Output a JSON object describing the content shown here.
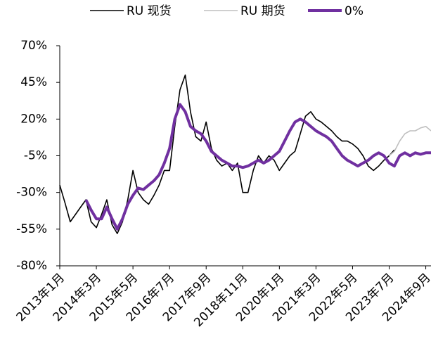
{
  "chart_data": {
    "type": "line",
    "categories": [
      "2013年1月",
      null,
      null,
      null,
      null,
      null,
      null,
      "2014年3月",
      null,
      null,
      null,
      null,
      null,
      null,
      "2015年5月",
      null,
      null,
      null,
      null,
      null,
      null,
      "2016年7月",
      null,
      null,
      null,
      null,
      null,
      null,
      "2017年9月",
      null,
      null,
      null,
      null,
      null,
      null,
      "2018年11月",
      null,
      null,
      null,
      null,
      null,
      null,
      "2020年1月",
      null,
      null,
      null,
      null,
      null,
      null,
      "2021年3月",
      null,
      null,
      null,
      null,
      null,
      null,
      "2022年5月",
      null,
      null,
      null,
      null,
      null,
      null,
      "2023年7月",
      null,
      null,
      null,
      null,
      null,
      null,
      "2024年9月",
      null
    ],
    "series": [
      {
        "name": "RU 现货",
        "color": "#000000",
        "values": [
          -25,
          -37,
          -50,
          -45,
          -40,
          -35,
          -50,
          -54,
          -45,
          -35,
          -52,
          -58,
          -50,
          -35,
          -15,
          -30,
          -35,
          -38,
          -32,
          -25,
          -15,
          -15,
          15,
          40,
          50,
          25,
          8,
          5,
          18,
          0,
          -8,
          -12,
          -10,
          -15,
          -10,
          -30,
          -30,
          -15,
          -5,
          -10,
          -5,
          -8,
          -15,
          -10,
          -5,
          -2,
          10,
          22,
          25,
          20,
          18,
          15,
          12,
          8,
          5,
          5,
          3,
          0,
          -5,
          -12,
          -15,
          -12,
          -8,
          -5,
          -1,
          null,
          null,
          null,
          null,
          null,
          null,
          null
        ]
      },
      {
        "name": "RU 期货",
        "color": "#bfbfbf",
        "values": [
          null,
          null,
          null,
          null,
          null,
          null,
          null,
          null,
          null,
          null,
          null,
          null,
          null,
          null,
          null,
          null,
          null,
          null,
          null,
          null,
          null,
          null,
          null,
          null,
          null,
          null,
          null,
          null,
          null,
          null,
          null,
          null,
          null,
          null,
          null,
          null,
          null,
          null,
          null,
          null,
          null,
          null,
          null,
          null,
          null,
          null,
          null,
          null,
          null,
          null,
          null,
          null,
          null,
          null,
          null,
          null,
          null,
          null,
          null,
          null,
          null,
          null,
          null,
          -5,
          -2,
          5,
          10,
          12,
          12,
          14,
          15,
          12
        ]
      },
      {
        "name": "0%",
        "color": "#7030a0",
        "values": [
          null,
          null,
          null,
          null,
          null,
          -35,
          -42,
          -48,
          -48,
          -40,
          -48,
          -55,
          -48,
          -38,
          -32,
          -27,
          -28,
          -25,
          -22,
          -18,
          -10,
          0,
          20,
          30,
          25,
          15,
          12,
          10,
          5,
          -2,
          -5,
          -8,
          -10,
          -12,
          -12,
          -13,
          -12,
          -10,
          -8,
          -10,
          -8,
          -5,
          -2,
          5,
          12,
          18,
          20,
          18,
          15,
          12,
          10,
          8,
          5,
          0,
          -5,
          -8,
          -10,
          -12,
          -10,
          -8,
          -5,
          -3,
          -5,
          -10,
          -12,
          -5,
          -3,
          -5,
          -3,
          -4,
          -3,
          -3
        ]
      }
    ],
    "ylim": [
      -80,
      70
    ],
    "yticks": [
      {
        "value": -80,
        "label": "-80%"
      },
      {
        "value": -55,
        "label": "-55%"
      },
      {
        "value": -30,
        "label": "-30%"
      },
      {
        "value": -5,
        "label": "-5%"
      },
      {
        "value": 20,
        "label": "20%"
      },
      {
        "value": 45,
        "label": "45%"
      },
      {
        "value": 70,
        "label": "70%"
      }
    ],
    "grid": false
  }
}
